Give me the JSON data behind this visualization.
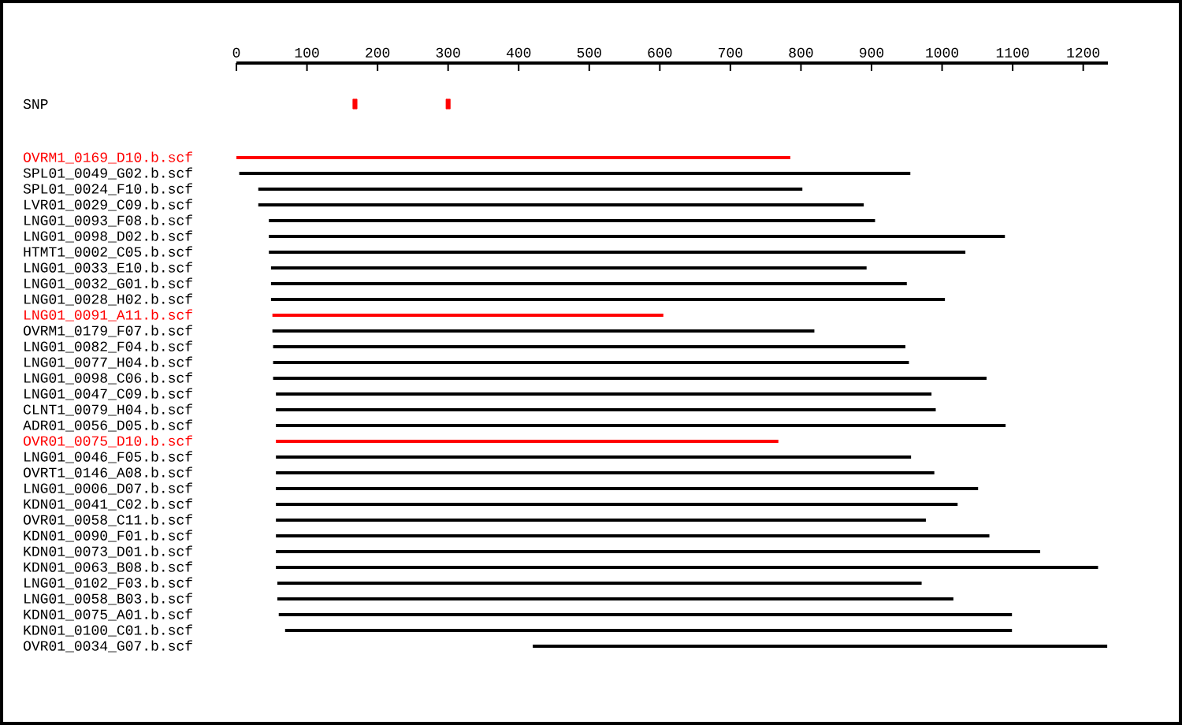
{
  "chart_data": {
    "type": "bar",
    "orientation": "horizontal",
    "categories": [
      "SNP",
      "OVRM1_0169_D10.b.scf",
      "SPL01_0049_G02.b.scf",
      "SPL01_0024_F10.b.scf",
      "LVR01_0029_C09.b.scf",
      "LNG01_0093_F08.b.scf",
      "LNG01_0098_D02.b.scf",
      "HTMT1_0002_C05.b.scf",
      "LNG01_0033_E10.b.scf",
      "LNG01_0032_G01.b.scf",
      "LNG01_0028_H02.b.scf",
      "LNG01_0091_A11.b.scf",
      "OVRM1_0179_F07.b.scf",
      "LNG01_0082_F04.b.scf",
      "LNG01_0077_H04.b.scf",
      "LNG01_0098_C06.b.scf",
      "LNG01_0047_C09.b.scf",
      "CLNT1_0079_H04.b.scf",
      "ADR01_0056_D05.b.scf",
      "OVR01_0075_D10.b.scf",
      "LNG01_0046_F05.b.scf",
      "OVRT1_0146_A08.b.scf",
      "LNG01_0006_D07.b.scf",
      "KDN01_0041_C02.b.scf",
      "OVR01_0058_C11.b.scf",
      "KDN01_0090_F01.b.scf",
      "KDN01_0073_D01.b.scf",
      "KDN01_0063_B08.b.scf",
      "LNG01_0102_F03.b.scf",
      "LNG01_0058_B03.b.scf",
      "KDN01_0075_A01.b.scf",
      "KDN01_0100_C01.b.scf",
      "OVR01_0034_G07.b.scf"
    ],
    "xlim": [
      0,
      1235
    ],
    "xticks": [
      0,
      100,
      200,
      300,
      400,
      500,
      600,
      700,
      800,
      900,
      1000,
      1100,
      1200
    ],
    "series": [
      {
        "base": [
          null,
          0,
          4,
          31,
          31,
          46,
          46,
          46,
          49,
          49,
          49,
          51,
          51,
          52,
          52,
          52,
          56,
          56,
          56,
          56,
          56,
          56,
          56,
          56,
          56,
          56,
          56,
          56,
          58,
          58,
          60,
          69,
          420
        ],
        "values": [
          null,
          785,
          951,
          771,
          858,
          859,
          1043,
          987,
          844,
          901,
          955,
          554,
          768,
          896,
          901,
          1011,
          929,
          935,
          1034,
          712,
          900,
          933,
          995,
          966,
          921,
          1011,
          1083,
          1165,
          913,
          958,
          1039,
          1030,
          814
        ],
        "colors": [
          null,
          "#ff0000",
          "#000000",
          "#000000",
          "#000000",
          "#000000",
          "#000000",
          "#000000",
          "#000000",
          "#000000",
          "#000000",
          "#ff0000",
          "#000000",
          "#000000",
          "#000000",
          "#000000",
          "#000000",
          "#000000",
          "#000000",
          "#ff0000",
          "#000000",
          "#000000",
          "#000000",
          "#000000",
          "#000000",
          "#000000",
          "#000000",
          "#000000",
          "#000000",
          "#000000",
          "#000000",
          "#000000",
          "#000000"
        ]
      },
      {
        "type": "scatter",
        "color": "#ff0000",
        "x": [
          "SNP",
          "SNP"
        ],
        "values": [
          168,
          300
        ]
      }
    ]
  }
}
